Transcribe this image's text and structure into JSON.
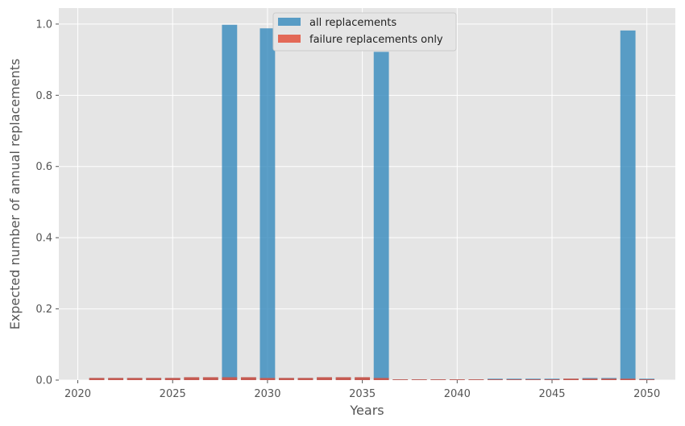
{
  "chart_data": {
    "type": "bar",
    "title": "",
    "xlabel": "Years",
    "ylabel": "Expected number of annual replacements",
    "xlim": [
      2019,
      2051.5
    ],
    "ylim": [
      0,
      1.045
    ],
    "x_ticks": [
      2020,
      2025,
      2030,
      2035,
      2040,
      2045,
      2050
    ],
    "y_ticks": [
      0.0,
      0.2,
      0.4,
      0.6,
      0.8,
      1.0
    ],
    "x_tick_labels": [
      "2020",
      "2025",
      "2030",
      "2035",
      "2040",
      "2045",
      "2050"
    ],
    "y_tick_labels": [
      "0.0",
      "0.2",
      "0.4",
      "0.6",
      "0.8",
      "1.0"
    ],
    "grid": true,
    "legend_position": "top-center",
    "x": [
      2021,
      2022,
      2023,
      2024,
      2025,
      2026,
      2027,
      2028,
      2029,
      2030,
      2031,
      2032,
      2033,
      2034,
      2035,
      2036,
      2037,
      2038,
      2039,
      2040,
      2041,
      2042,
      2043,
      2044,
      2045,
      2046,
      2047,
      2048,
      2049,
      2050
    ],
    "series": [
      {
        "name": "all replacements",
        "color": "#348ABD",
        "values": [
          0.006,
          0.006,
          0.006,
          0.006,
          0.006,
          0.008,
          0.008,
          0.998,
          0.008,
          0.988,
          0.006,
          0.006,
          0.008,
          0.008,
          0.008,
          0.922,
          0.002,
          0.002,
          0.002,
          0.002,
          0.002,
          0.004,
          0.004,
          0.004,
          0.004,
          0.004,
          0.006,
          0.006,
          0.982,
          0.004
        ]
      },
      {
        "name": "failure replacements only",
        "color": "#E24A33",
        "values": [
          0.006,
          0.006,
          0.006,
          0.006,
          0.006,
          0.008,
          0.008,
          0.008,
          0.008,
          0.006,
          0.006,
          0.006,
          0.008,
          0.008,
          0.008,
          0.006,
          0.002,
          0.002,
          0.002,
          0.002,
          0.002,
          0.002,
          0.002,
          0.002,
          0.002,
          0.004,
          0.004,
          0.004,
          0.004,
          0.002
        ]
      }
    ]
  },
  "colors": {
    "plot_background": "#E5E5E5",
    "grid": "#FFFFFF"
  }
}
